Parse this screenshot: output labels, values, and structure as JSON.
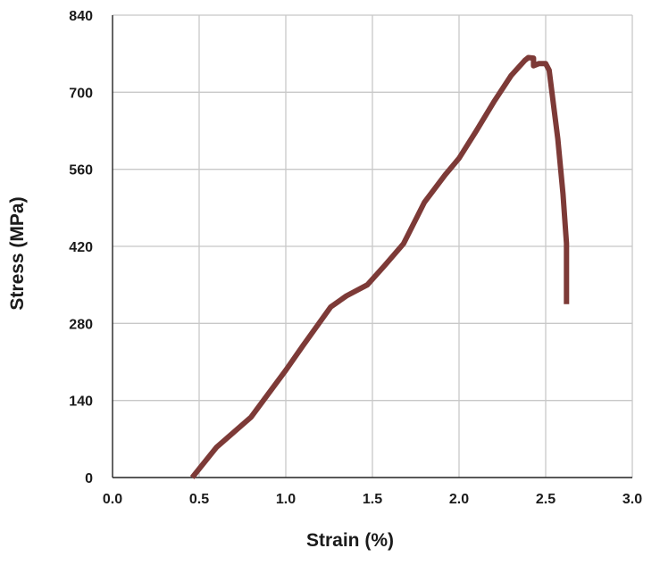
{
  "chart_data": {
    "type": "line",
    "title": "",
    "xlabel": "Strain (%)",
    "ylabel": "Stress (MPa)",
    "xlim": [
      0,
      3.0
    ],
    "ylim": [
      0,
      840
    ],
    "xticks": [
      "0.0",
      "0.5",
      "1.0",
      "1.5",
      "2.0",
      "2.5",
      "3.0"
    ],
    "yticks": [
      "0",
      "140",
      "280",
      "420",
      "560",
      "700",
      "840"
    ],
    "grid": true,
    "legend": "none",
    "series": [
      {
        "color": "#7d3a37",
        "x": [
          0.46,
          0.6,
          0.8,
          1.0,
          1.1,
          1.26,
          1.35,
          1.47,
          1.57,
          1.68,
          1.8,
          1.92,
          2.0,
          2.1,
          2.2,
          2.3,
          2.38,
          2.4,
          2.43,
          2.43,
          2.46,
          2.5,
          2.52,
          2.55,
          2.57,
          2.6,
          2.62,
          2.62
        ],
        "y": [
          0,
          55,
          110,
          195,
          240,
          310,
          330,
          350,
          385,
          425,
          500,
          550,
          580,
          630,
          682,
          730,
          758,
          763,
          762,
          748,
          752,
          752,
          740,
          665,
          615,
          515,
          425,
          315
        ]
      }
    ]
  }
}
